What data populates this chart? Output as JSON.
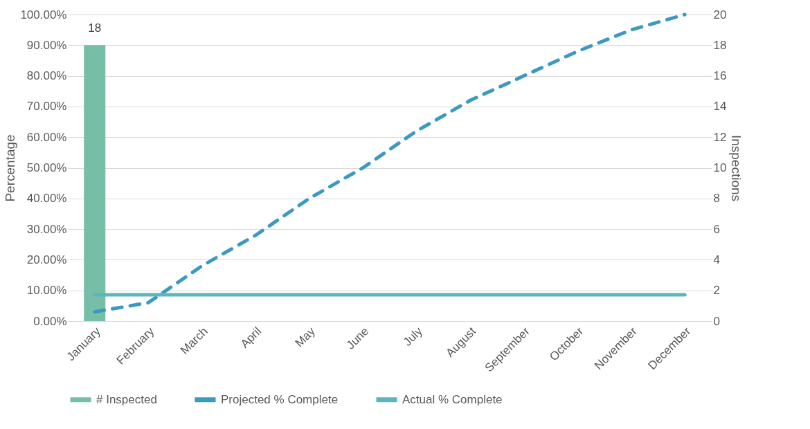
{
  "chart_data": {
    "type": "line",
    "xlabel": null,
    "ylabel": "Percentage",
    "y2label": "Inspections",
    "categories": [
      "January",
      "February",
      "March",
      "April",
      "May",
      "June",
      "July",
      "August",
      "September",
      "October",
      "November",
      "December"
    ],
    "series": [
      {
        "name": "# Inspected",
        "type": "bar",
        "axis": "y2",
        "color": "#76bea6",
        "values": [
          18,
          null,
          null,
          null,
          null,
          null,
          null,
          null,
          null,
          null,
          null,
          null
        ],
        "value_labels": [
          "18",
          null,
          null,
          null,
          null,
          null,
          null,
          null,
          null,
          null,
          null,
          null
        ]
      },
      {
        "name": "Projected % Complete",
        "line_style": "dashed",
        "color": "#3a9ac2",
        "values": [
          3,
          6,
          18,
          28,
          40,
          50,
          62,
          72,
          80,
          88,
          95,
          100
        ]
      },
      {
        "name": "Actual % Complete",
        "line_style": "solid",
        "color": "#5bb5c0",
        "values": [
          8.6,
          8.6,
          8.6,
          8.6,
          8.6,
          8.6,
          8.6,
          8.6,
          8.6,
          8.6,
          8.6,
          8.6
        ]
      }
    ],
    "ylim": [
      0,
      100
    ],
    "yticks": [
      {
        "value": 0,
        "label": "0.00%"
      },
      {
        "value": 10,
        "label": "10.00%"
      },
      {
        "value": 20,
        "label": "20.00%"
      },
      {
        "value": 30,
        "label": "30.00%"
      },
      {
        "value": 40,
        "label": "40.00%"
      },
      {
        "value": 50,
        "label": "50.00%"
      },
      {
        "value": 60,
        "label": "60.00%"
      },
      {
        "value": 70,
        "label": "70.00%"
      },
      {
        "value": 80,
        "label": "80.00%"
      },
      {
        "value": 90,
        "label": "90.00%"
      },
      {
        "value": 100,
        "label": "100.00%"
      }
    ],
    "y2lim": [
      0,
      20
    ],
    "y2ticks": [
      0,
      2,
      4,
      6,
      8,
      10,
      12,
      14,
      16,
      18,
      20
    ],
    "grid": "y",
    "legend": "bottom"
  }
}
